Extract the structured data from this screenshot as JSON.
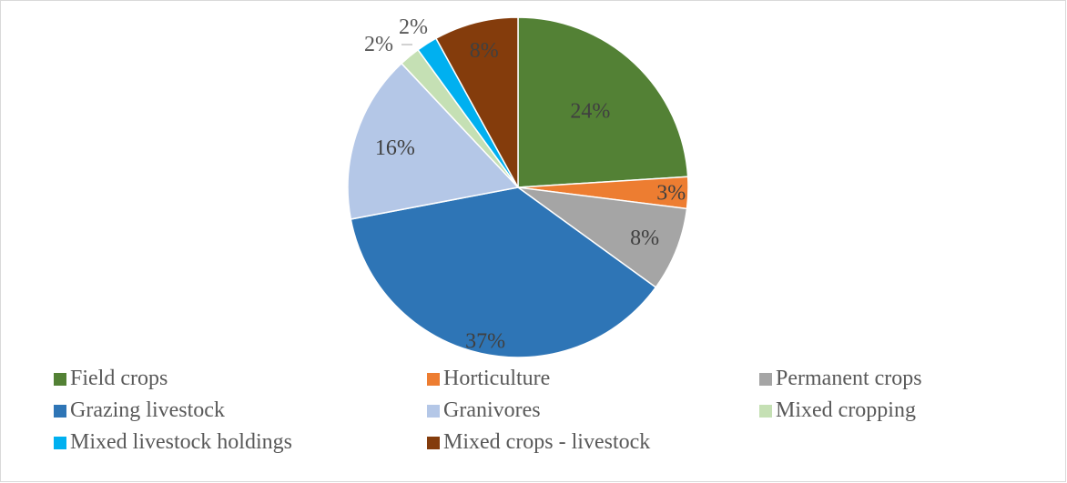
{
  "chart_data": {
    "type": "pie",
    "title": "",
    "legend_position": "bottom",
    "slices": [
      {
        "name": "Field crops",
        "value": 24,
        "label": "24%",
        "color": "#538135"
      },
      {
        "name": "Horticulture",
        "value": 3,
        "label": "3%",
        "color": "#ed7d31"
      },
      {
        "name": "Permanent crops",
        "value": 8,
        "label": "8%",
        "color": "#a5a5a5"
      },
      {
        "name": "Grazing livestock",
        "value": 37,
        "label": "37%",
        "color": "#2e75b6"
      },
      {
        "name": "Granivores",
        "value": 16,
        "label": "16%",
        "color": "#b4c7e7"
      },
      {
        "name": "Mixed cropping",
        "value": 2,
        "label": "2%",
        "color": "#c5e0b4"
      },
      {
        "name": "Mixed livestock holdings",
        "value": 2,
        "label": "2%",
        "color": "#00b0f0"
      },
      {
        "name": "Mixed crops - livestock",
        "value": 8,
        "label": "8%",
        "color": "#843c0c"
      }
    ]
  }
}
